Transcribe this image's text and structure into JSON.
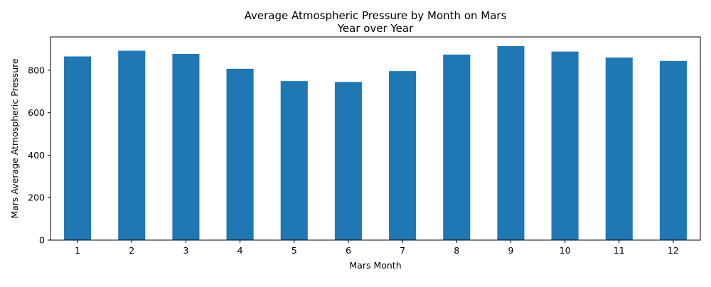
{
  "chart_data": {
    "type": "bar",
    "title": "Average Atmospheric Pressure by Month on Mars",
    "subtitle": "Year over Year",
    "xlabel": "Mars Month",
    "ylabel": "Mars Average Atmospheric Pressure",
    "categories": [
      "1",
      "2",
      "3",
      "4",
      "5",
      "6",
      "7",
      "8",
      "9",
      "10",
      "11",
      "12"
    ],
    "values": [
      865,
      892,
      877,
      807,
      749,
      745,
      796,
      874,
      914,
      888,
      860,
      844
    ],
    "ylim": [
      0,
      957
    ],
    "yticks": [
      "0",
      "200",
      "400",
      "600",
      "800"
    ],
    "grid": false,
    "bar_color": "#1f77b4"
  }
}
